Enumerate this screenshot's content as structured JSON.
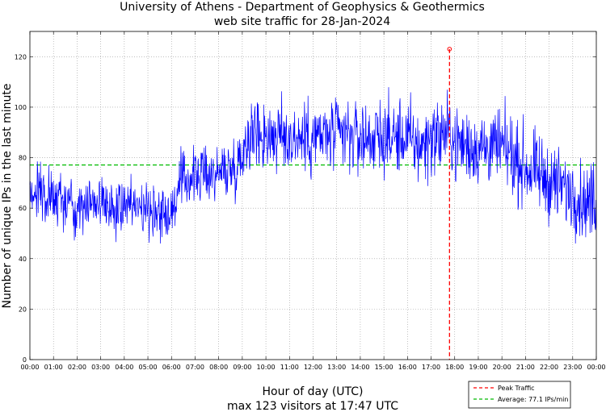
{
  "chart_data": {
    "type": "line",
    "title": [
      "University of Athens - Department of Geophysics & Geothermics",
      "web site traffic for 28-Jan-2024"
    ],
    "xlabel": "Hour of day (UTC)",
    "summary": "max 123 visitors at 17:47 UTC",
    "ylabel": "Number of unique IPs in the last minute",
    "xlim": [
      0,
      24
    ],
    "ylim": [
      0,
      130
    ],
    "grid": true,
    "x_ticks": [
      "00:00",
      "01:00",
      "02:00",
      "03:00",
      "04:00",
      "05:00",
      "06:00",
      "07:00",
      "08:00",
      "09:00",
      "10:00",
      "11:00",
      "12:00",
      "13:00",
      "14:00",
      "15:00",
      "16:00",
      "17:00",
      "18:00",
      "19:00",
      "20:00",
      "21:00",
      "22:00",
      "23:00",
      "00:00"
    ],
    "y_ticks": [
      0,
      20,
      40,
      60,
      80,
      100,
      120
    ],
    "traffic_profile": {
      "hours": [
        0,
        0.5,
        1,
        2,
        3,
        3.8,
        4.2,
        5,
        6,
        6.4,
        7,
        8,
        8.8,
        9.3,
        10,
        11,
        12,
        13,
        14,
        15,
        16,
        16.5,
        17,
        17.78,
        18,
        19,
        20,
        21,
        22,
        23,
        23.5,
        24
      ],
      "mean_ips": [
        68,
        66,
        63,
        62,
        63,
        60,
        62,
        60,
        58,
        70,
        73,
        74,
        77,
        90,
        89,
        88,
        88,
        89,
        88,
        88,
        88,
        84,
        88,
        90,
        86,
        84,
        84,
        76,
        71,
        66,
        62,
        64
      ]
    },
    "series": [
      {
        "name": "Traffic",
        "color": "#0000ff"
      },
      {
        "name": "Peak Traffic",
        "color": "#ff0000",
        "x": 17.78,
        "y": 123
      },
      {
        "name": "Average: 77.1 IPs/min",
        "color": "#00bb00",
        "y": 77.1
      }
    ],
    "legend": {
      "placement": "bottom-right",
      "entries": [
        "Peak Traffic",
        "Average: 77.1 IPs/min"
      ]
    }
  }
}
